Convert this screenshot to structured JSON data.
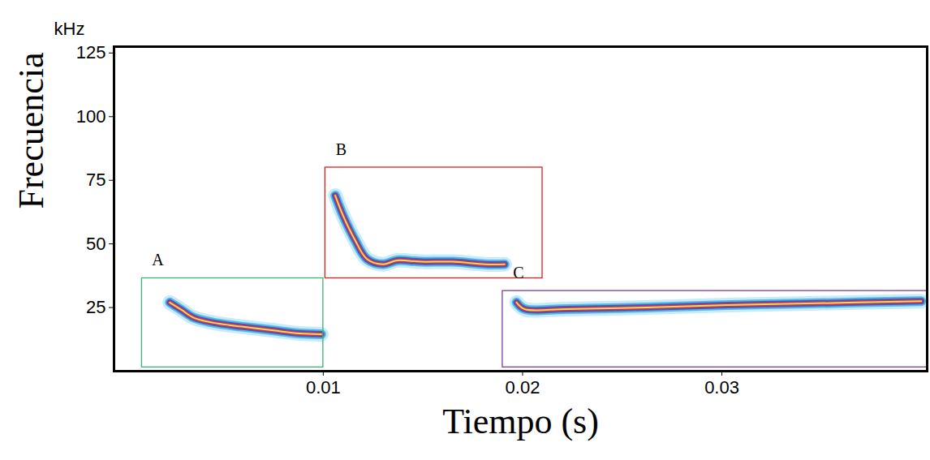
{
  "chart_data": {
    "type": "spectrogram",
    "x_label": "Tiempo (s)",
    "y_label": "Frecuencia",
    "y_unit": "kHz",
    "xlim": [
      -0.0005,
      0.0403
    ],
    "ylim": [
      0,
      127.5
    ],
    "xticks": [
      0.01,
      0.02,
      0.03
    ],
    "yticks": [
      25,
      50,
      75,
      100,
      125
    ],
    "series": [
      {
        "name": "A",
        "color": "#3cb371",
        "box": {
          "x": [
            0.0009,
            0.01
          ],
          "y": [
            1.5,
            36.5
          ]
        },
        "x": [
          0.0023,
          0.0029,
          0.0035,
          0.0045,
          0.0059,
          0.0075,
          0.0088,
          0.0099
        ],
        "values": [
          27,
          24,
          21,
          19,
          17.5,
          16,
          14.8,
          14.5
        ]
      },
      {
        "name": "B",
        "color": "#e02020",
        "box": {
          "x": [
            0.0101,
            0.021
          ],
          "y": [
            36.5,
            80
          ]
        },
        "x": [
          0.0106,
          0.011,
          0.0116,
          0.0122,
          0.013,
          0.0137,
          0.0149,
          0.0165,
          0.0181,
          0.0191
        ],
        "values": [
          69,
          61,
          51.4,
          44,
          42,
          43.5,
          43,
          43,
          42,
          42
        ]
      },
      {
        "name": "C",
        "color": "#7b3f9e",
        "box": {
          "x": [
            0.019,
            0.0403
          ],
          "y": [
            1.5,
            31.5
          ]
        },
        "x": [
          0.0197,
          0.0201,
          0.0222,
          0.0262,
          0.0303,
          0.0343,
          0.04
        ],
        "values": [
          27,
          24.4,
          24.4,
          25,
          26,
          26.6,
          27.5
        ]
      }
    ]
  }
}
